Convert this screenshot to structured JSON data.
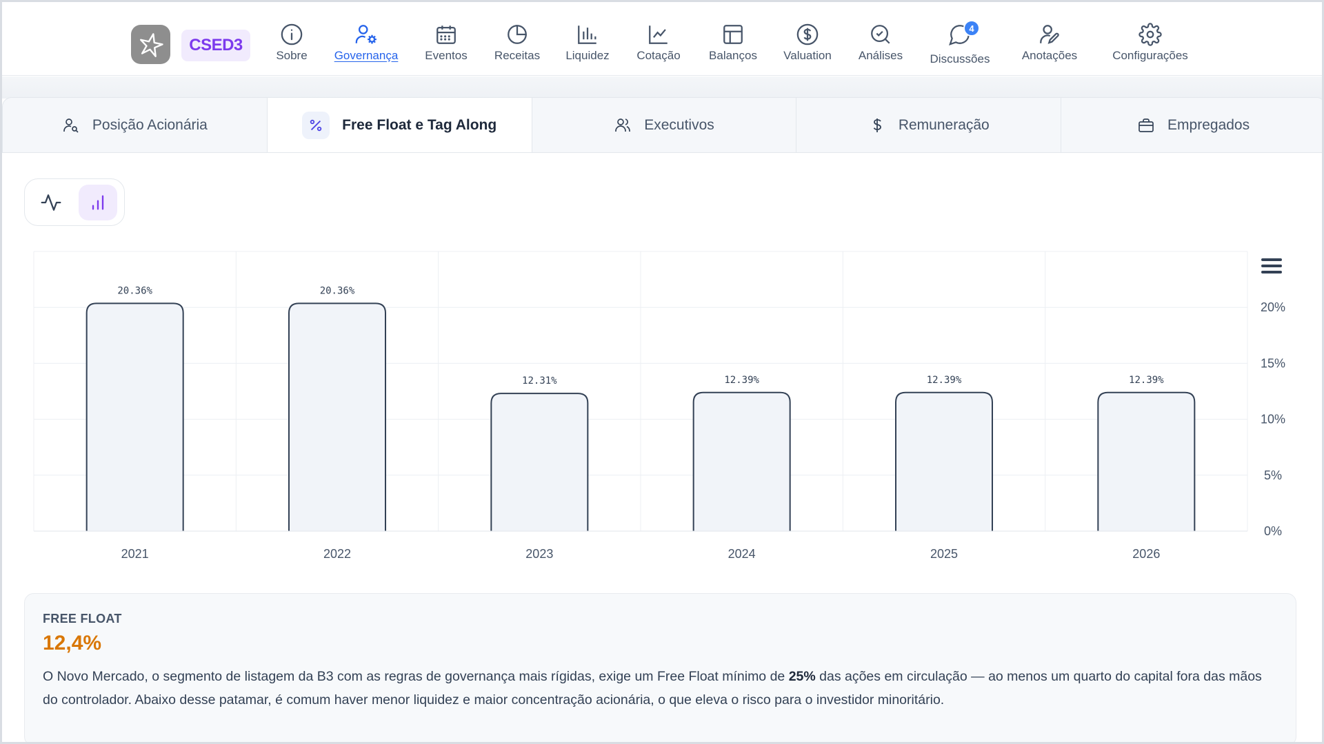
{
  "app": {
    "ticker": "CSED3",
    "logo_icon": "star-logo-icon"
  },
  "nav": {
    "items": [
      {
        "label": "Sobre",
        "icon": "info-icon"
      },
      {
        "label": "Governança",
        "icon": "user-gear-icon",
        "active": true
      },
      {
        "label": "Eventos",
        "icon": "calendar-icon"
      },
      {
        "label": "Receitas",
        "icon": "pie-chart-icon"
      },
      {
        "label": "Liquidez",
        "icon": "bar-chart-icon"
      },
      {
        "label": "Cotação",
        "icon": "line-chart-icon"
      },
      {
        "label": "Balanços",
        "icon": "layout-icon"
      },
      {
        "label": "Valuation",
        "icon": "dollar-circle-icon"
      },
      {
        "label": "Análises",
        "icon": "search-check-icon"
      },
      {
        "label": "Discussões",
        "icon": "chat-bubble-icon",
        "badge": "4"
      },
      {
        "label": "Anotações",
        "icon": "user-pen-icon"
      },
      {
        "label": "Configurações",
        "icon": "gear-icon"
      }
    ]
  },
  "subtabs": [
    {
      "label": "Posição Acionária",
      "icon": "user-search-icon"
    },
    {
      "label": "Free Float e Tag Along",
      "icon": "percent-icon",
      "active": true
    },
    {
      "label": "Executivos",
      "icon": "users-icon"
    },
    {
      "label": "Remuneração",
      "icon": "dollar-icon"
    },
    {
      "label": "Empregados",
      "icon": "briefcase-icon"
    }
  ],
  "chart_toggle": {
    "options": [
      "line-chart-icon",
      "bar-chart-icon"
    ],
    "selected": "bar-chart-icon"
  },
  "chart_data": {
    "type": "bar",
    "categories": [
      "2021",
      "2022",
      "2023",
      "2024",
      "2025",
      "2026"
    ],
    "values": [
      20.36,
      20.36,
      12.31,
      12.39,
      12.39,
      12.39
    ],
    "data_labels": [
      "20.36%",
      "20.36%",
      "12.31%",
      "12.39%",
      "12.39%",
      "12.39%"
    ],
    "y_ticks": [
      "0%",
      "5%",
      "10%",
      "15%",
      "20%"
    ],
    "ylim": [
      0,
      25
    ],
    "y_axis_side": "right",
    "grid": true,
    "bar_fill": "#f1f4f9",
    "bar_stroke": "#334155"
  },
  "info_card": {
    "label": "FREE FLOAT",
    "value": "12,4%",
    "text_part1": "O Novo Mercado, o segmento de listagem da B3 com as regras de governança mais rígidas, exige um Free Float mínimo de ",
    "text_bold": "25%",
    "text_part2": " das ações em circulação — ao menos um quarto do capital fora das mãos do controlador. Abaixo desse patamar, é comum haver menor liquidez e maior concentração acionária, o que eleva o risco para o investidor minoritário."
  },
  "colors": {
    "accent": "#2563eb",
    "brand_purple": "#7c3aed",
    "value_orange": "#d97706"
  }
}
